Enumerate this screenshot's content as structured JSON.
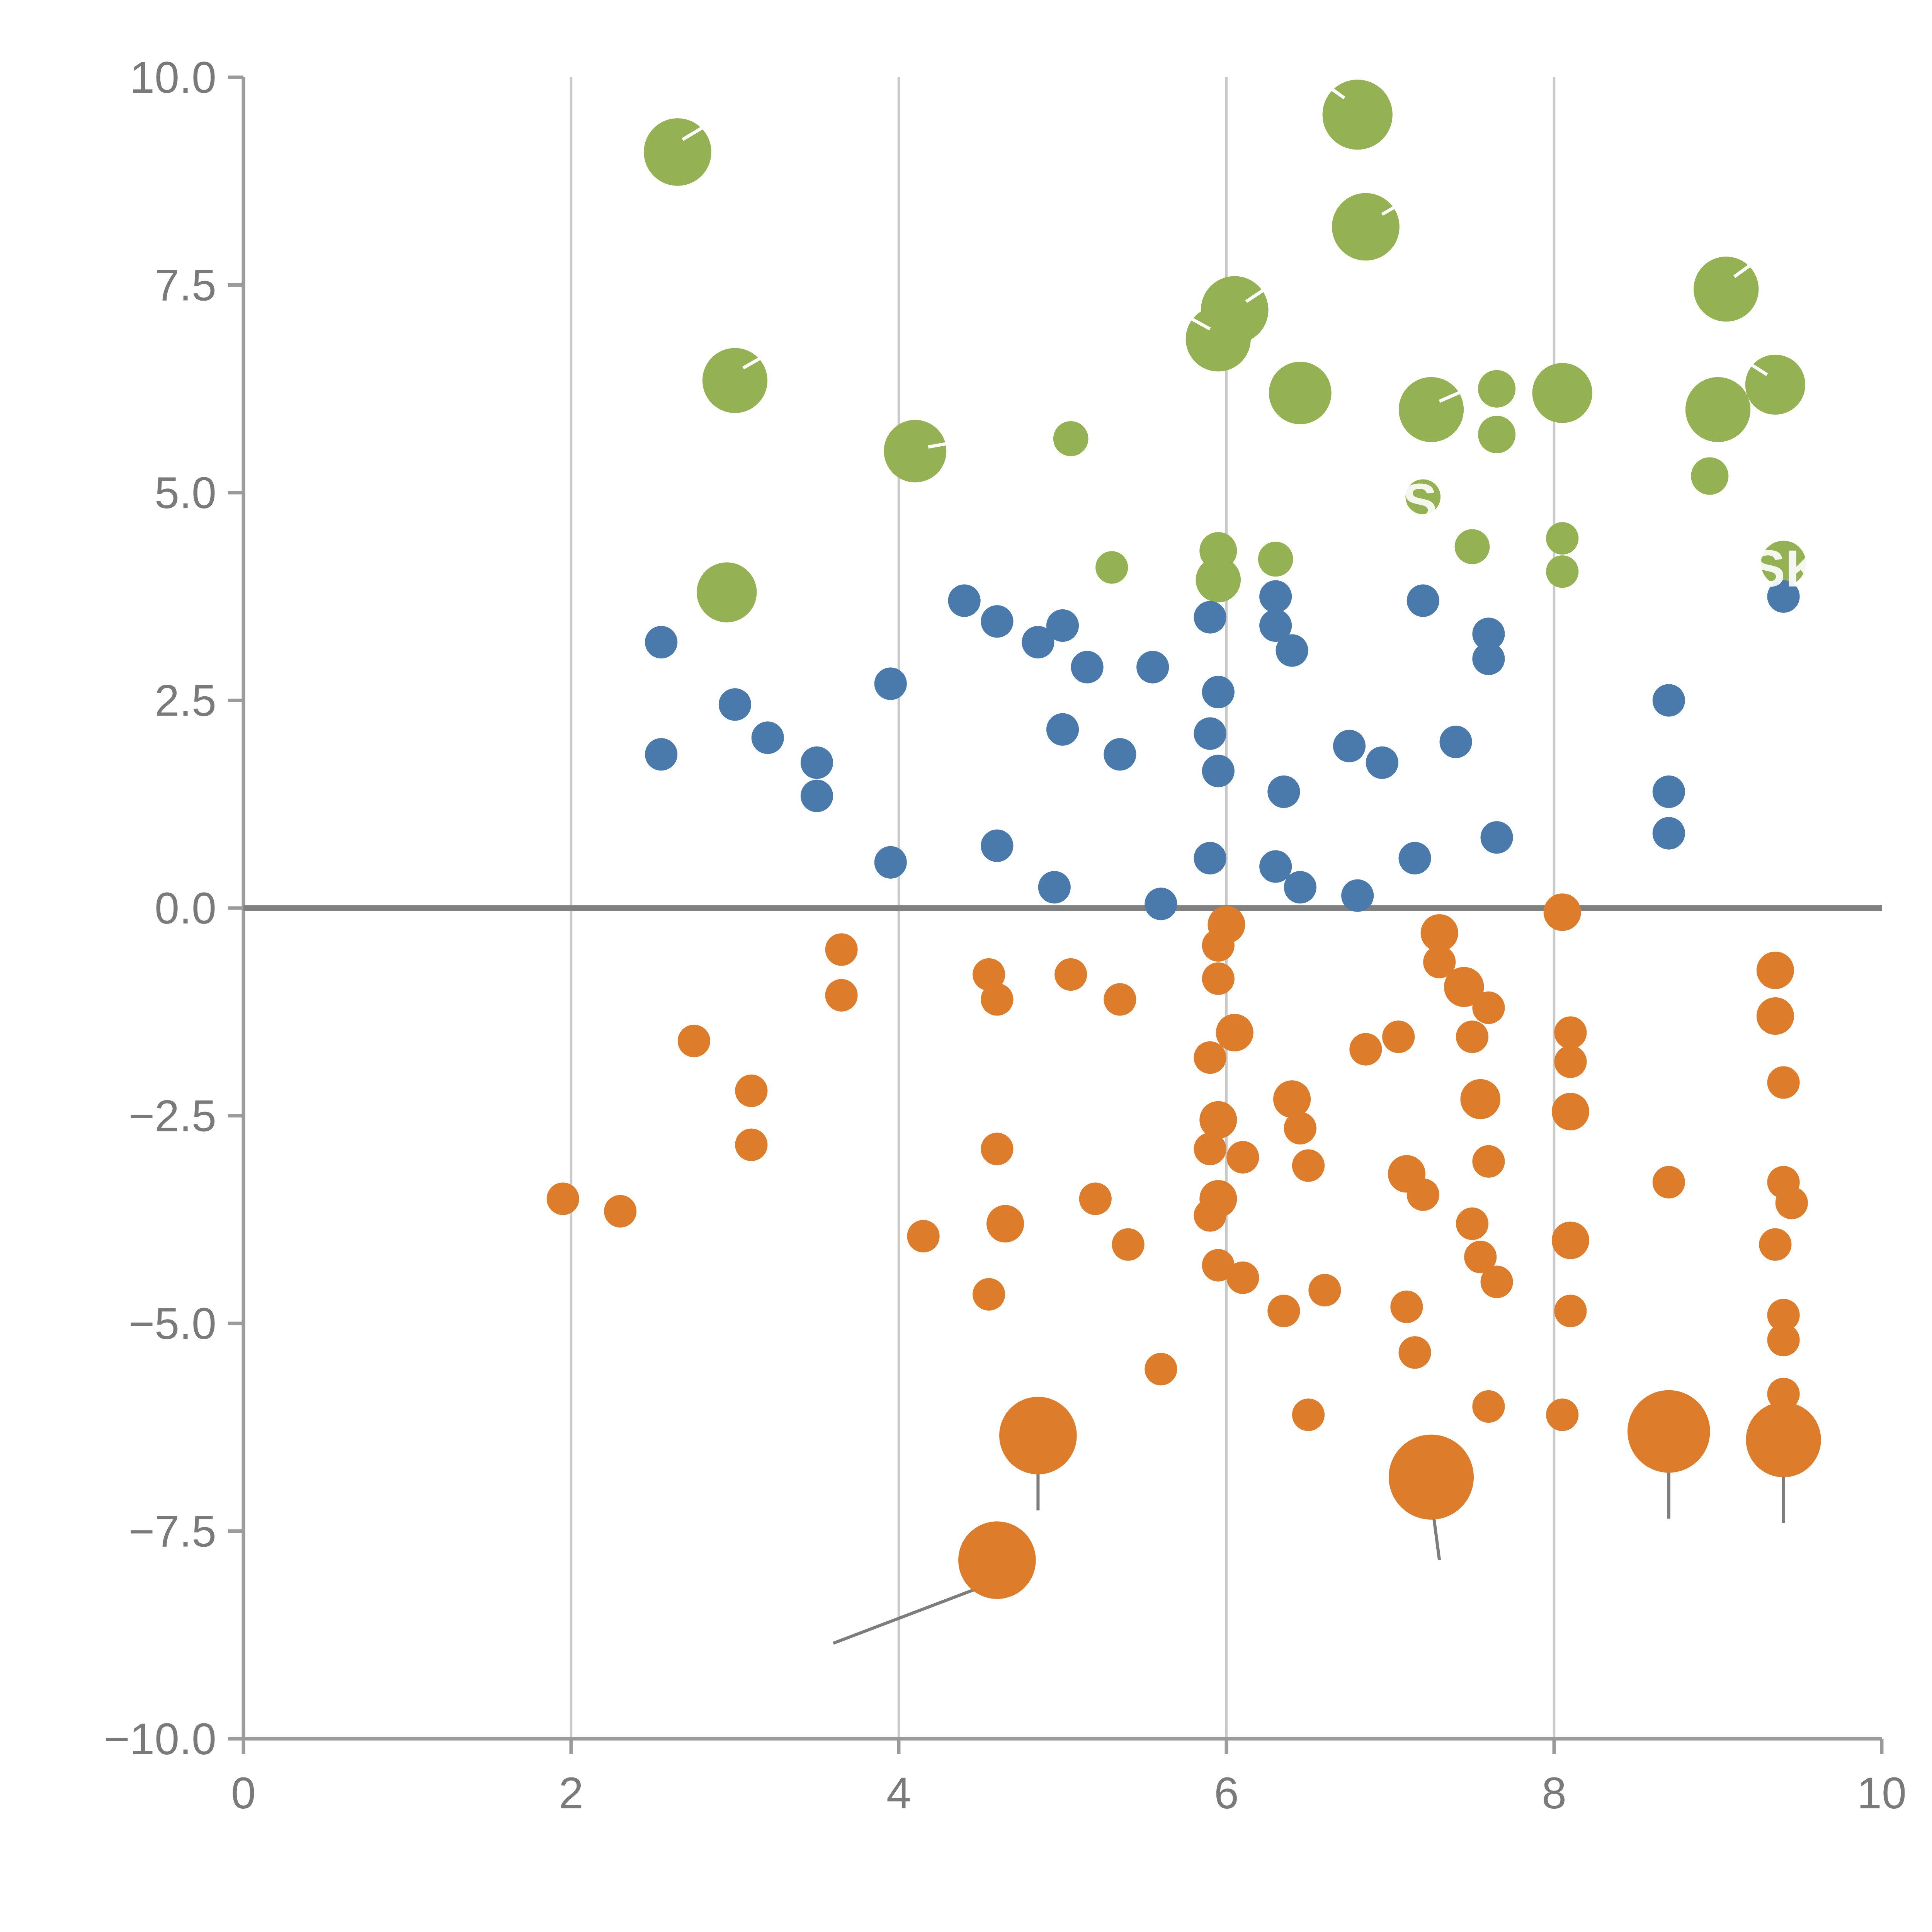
{
  "chart_data": {
    "type": "scatter",
    "title": "",
    "xlabel": "",
    "ylabel": "",
    "xlim": [
      0,
      10
    ],
    "ylim": [
      -10,
      10
    ],
    "x_ticks": [
      0,
      2,
      4,
      6,
      8,
      10
    ],
    "x_tick_labels": [
      "0",
      "2",
      "4",
      "6",
      "8",
      "10"
    ],
    "y_ticks": [
      10,
      7.5,
      5,
      2.5,
      0,
      -2.5,
      -5,
      -7.5,
      -10
    ],
    "y_tick_labels": [
      "10.0",
      "7.5",
      "5.0",
      "2.5",
      "0.0",
      "−2.5",
      "−5.0",
      "−7.5",
      "−10.0"
    ],
    "grid": {
      "vertical_at": [
        2,
        4,
        6,
        8
      ],
      "horizontal": false,
      "zero_line": true
    },
    "colors": {
      "green": "#94b153",
      "blue": "#4a79ac",
      "orange": "#dd7d2c",
      "grid": "#c9c9c9",
      "zero_line": "#808080",
      "spine": "#9b9b9b",
      "tick_label": "#7a7a7a",
      "leader_line": "#7d7d7d",
      "white_mark": "#ffffff"
    },
    "legend": null,
    "series": [
      {
        "name": "green-bubbles",
        "color_key": "green",
        "default_r": 26,
        "points": [
          [
            2.65,
            9.1,
            27
          ],
          [
            6.8,
            9.55,
            28
          ],
          [
            6.85,
            8.2,
            27
          ],
          [
            3.0,
            6.35,
            26
          ],
          [
            6.05,
            7.2,
            27
          ],
          [
            5.95,
            6.85,
            26
          ],
          [
            6.45,
            6.2,
            25
          ],
          [
            9.05,
            7.45,
            26
          ],
          [
            4.1,
            5.5,
            25
          ],
          [
            5.05,
            5.65,
            14
          ],
          [
            7.25,
            6.0,
            26
          ],
          [
            7.65,
            6.25,
            15
          ],
          [
            7.65,
            5.7,
            15
          ],
          [
            8.05,
            6.2,
            24
          ],
          [
            9.0,
            6.0,
            26
          ],
          [
            9.35,
            6.3,
            24
          ],
          [
            8.95,
            5.2,
            15
          ],
          [
            7.2,
            4.95,
            14
          ],
          [
            7.5,
            4.35,
            14
          ],
          [
            2.95,
            3.8,
            24
          ],
          [
            5.3,
            4.1,
            13
          ],
          [
            5.95,
            4.3,
            15
          ],
          [
            5.95,
            3.95,
            18
          ],
          [
            6.3,
            4.2,
            14
          ],
          [
            8.05,
            4.45,
            13
          ],
          [
            8.05,
            4.05,
            13
          ],
          [
            9.4,
            4.15,
            18
          ]
        ]
      },
      {
        "name": "blue-dots",
        "color_key": "blue",
        "default_r": 13,
        "points": [
          [
            2.55,
            3.2
          ],
          [
            2.55,
            1.85
          ],
          [
            3.0,
            2.45
          ],
          [
            3.2,
            2.05
          ],
          [
            3.5,
            1.75
          ],
          [
            3.5,
            1.35
          ],
          [
            3.95,
            2.7
          ],
          [
            3.95,
            0.55
          ],
          [
            4.4,
            3.7
          ],
          [
            4.6,
            3.45
          ],
          [
            4.6,
            0.75
          ],
          [
            4.85,
            3.2
          ],
          [
            5.0,
            3.4
          ],
          [
            5.15,
            2.9
          ],
          [
            5.0,
            2.15
          ],
          [
            4.95,
            0.25
          ],
          [
            5.35,
            1.85
          ],
          [
            5.55,
            2.9
          ],
          [
            5.6,
            0.05
          ],
          [
            5.9,
            3.5
          ],
          [
            5.95,
            2.6
          ],
          [
            5.9,
            2.1
          ],
          [
            5.95,
            1.65
          ],
          [
            5.9,
            0.6
          ],
          [
            6.3,
            3.75
          ],
          [
            6.3,
            3.4
          ],
          [
            6.4,
            3.1
          ],
          [
            6.35,
            1.4
          ],
          [
            6.3,
            0.5
          ],
          [
            6.45,
            0.25
          ],
          [
            6.75,
            1.95
          ],
          [
            6.95,
            1.75
          ],
          [
            6.8,
            0.15
          ],
          [
            7.2,
            3.7
          ],
          [
            7.15,
            0.6
          ],
          [
            7.4,
            2.0
          ],
          [
            7.6,
            3.3
          ],
          [
            7.6,
            3.0
          ],
          [
            7.65,
            0.85
          ],
          [
            8.7,
            2.5
          ],
          [
            8.7,
            1.4
          ],
          [
            8.7,
            0.9
          ],
          [
            9.4,
            3.75
          ]
        ]
      },
      {
        "name": "orange-dots",
        "color_key": "orange",
        "default_r": 13,
        "points": [
          [
            1.95,
            -3.5
          ],
          [
            2.3,
            -3.65
          ],
          [
            2.75,
            -1.6
          ],
          [
            3.1,
            -2.2
          ],
          [
            3.1,
            -2.85
          ],
          [
            3.65,
            -0.5
          ],
          [
            3.65,
            -1.05
          ],
          [
            4.15,
            -3.95
          ],
          [
            4.55,
            -0.8
          ],
          [
            4.6,
            -1.1
          ],
          [
            4.6,
            -2.9
          ],
          [
            4.65,
            -3.8,
            15
          ],
          [
            4.55,
            -4.65
          ],
          [
            5.05,
            -0.8
          ],
          [
            5.2,
            -3.5
          ],
          [
            5.35,
            -1.1
          ],
          [
            5.4,
            -4.05
          ],
          [
            5.6,
            -5.55
          ],
          [
            4.85,
            -6.35,
            31
          ],
          [
            4.6,
            -7.85,
            31
          ],
          [
            5.95,
            -0.45
          ],
          [
            5.95,
            -0.85
          ],
          [
            6.0,
            -0.2,
            15
          ],
          [
            6.05,
            -1.5,
            15
          ],
          [
            5.9,
            -1.8
          ],
          [
            5.95,
            -2.55,
            15
          ],
          [
            5.9,
            -2.9
          ],
          [
            6.1,
            -3.0
          ],
          [
            5.95,
            -3.5,
            15
          ],
          [
            5.9,
            -3.7
          ],
          [
            5.95,
            -4.3
          ],
          [
            6.1,
            -4.45
          ],
          [
            6.4,
            -2.3,
            15
          ],
          [
            6.45,
            -2.65
          ],
          [
            6.5,
            -3.1
          ],
          [
            6.35,
            -4.85
          ],
          [
            6.6,
            -4.6
          ],
          [
            6.5,
            -6.1
          ],
          [
            6.85,
            -1.7
          ],
          [
            7.05,
            -1.55
          ],
          [
            7.1,
            -3.2,
            15
          ],
          [
            7.2,
            -3.45
          ],
          [
            7.1,
            -4.8
          ],
          [
            7.15,
            -5.35
          ],
          [
            7.25,
            -6.85,
            34
          ],
          [
            7.3,
            -0.3,
            15
          ],
          [
            7.3,
            -0.65
          ],
          [
            7.45,
            -0.95,
            16
          ],
          [
            7.6,
            -1.2
          ],
          [
            7.5,
            -1.55
          ],
          [
            7.55,
            -2.3,
            16
          ],
          [
            7.6,
            -3.05
          ],
          [
            7.5,
            -3.8
          ],
          [
            7.55,
            -4.2
          ],
          [
            7.65,
            -4.5
          ],
          [
            7.6,
            -6.0
          ],
          [
            8.05,
            -0.05,
            15
          ],
          [
            8.1,
            -1.5
          ],
          [
            8.1,
            -1.85
          ],
          [
            8.1,
            -2.45,
            15
          ],
          [
            8.1,
            -4.0,
            15
          ],
          [
            8.1,
            -4.85
          ],
          [
            8.05,
            -6.1
          ],
          [
            8.7,
            -3.3
          ],
          [
            8.7,
            -6.3,
            33
          ],
          [
            9.35,
            -0.75,
            15
          ],
          [
            9.35,
            -1.3,
            15
          ],
          [
            9.4,
            -2.1
          ],
          [
            9.4,
            -3.3
          ],
          [
            9.45,
            -3.55
          ],
          [
            9.35,
            -4.05
          ],
          [
            9.4,
            -4.9
          ],
          [
            9.4,
            -5.2
          ],
          [
            9.4,
            -5.85
          ],
          [
            9.4,
            -6.4,
            30
          ]
        ]
      }
    ],
    "leader_lines": [
      [
        4.85,
        -6.55,
        4.85,
        -7.25
      ],
      [
        4.6,
        -8.1,
        3.6,
        -8.85
      ],
      [
        7.25,
        -7.1,
        7.3,
        -7.85
      ],
      [
        8.7,
        -6.55,
        8.7,
        -7.35
      ],
      [
        9.4,
        -6.65,
        9.4,
        -7.4
      ]
    ],
    "white_marks": [
      [
        2.68,
        9.25,
        2.85,
        9.45
      ],
      [
        6.72,
        9.75,
        6.6,
        9.92
      ],
      [
        6.95,
        8.35,
        7.1,
        8.52
      ],
      [
        3.05,
        6.5,
        3.2,
        6.67
      ],
      [
        4.18,
        5.55,
        4.38,
        5.62
      ],
      [
        6.12,
        7.3,
        6.25,
        7.47
      ],
      [
        5.9,
        6.97,
        5.78,
        7.1
      ],
      [
        7.3,
        6.1,
        7.44,
        6.22
      ],
      [
        9.1,
        7.6,
        9.22,
        7.77
      ],
      [
        9.3,
        6.42,
        9.18,
        6.57
      ]
    ],
    "annotations": [
      {
        "text": "SK",
        "x": 9.42,
        "y": 4.08
      },
      {
        "text": "S",
        "x": 7.18,
        "y": 4.88
      }
    ]
  }
}
